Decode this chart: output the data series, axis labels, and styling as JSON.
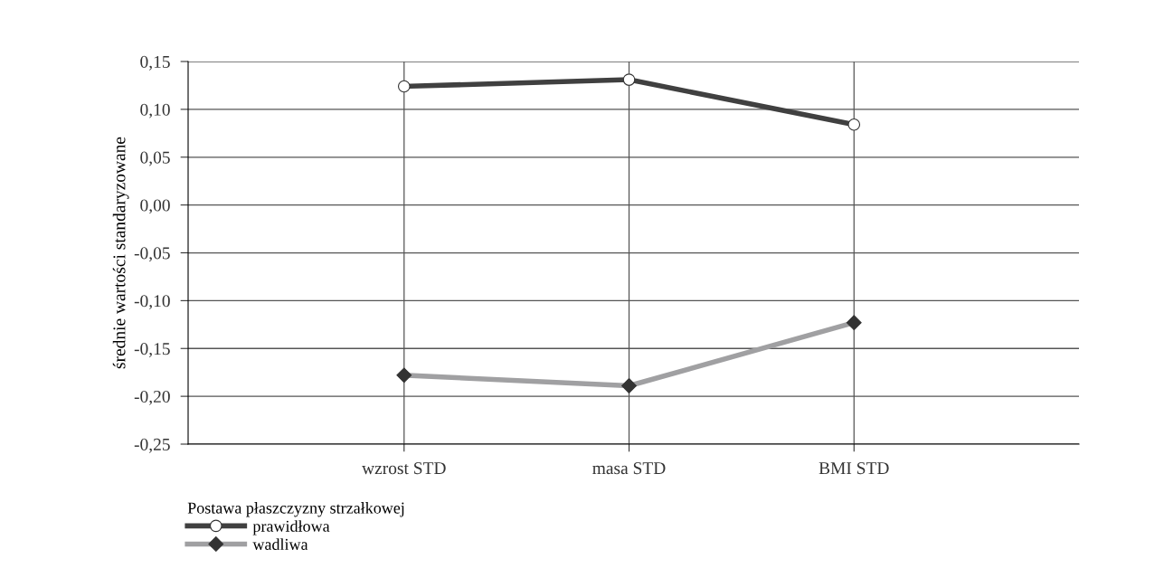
{
  "chart_data": {
    "type": "line",
    "ylabel": "średnie wartości standaryzowane",
    "legend_title": "Postawa płaszczyzny strzałkowej",
    "categories": [
      "wzrost STD",
      "masa STD",
      "BMI STD"
    ],
    "series": [
      {
        "name": "prawidłowa",
        "color": "#404040",
        "marker": "circle",
        "values": [
          0.124,
          0.131,
          0.084
        ]
      },
      {
        "name": "wadliwa",
        "color": "#a0a0a2",
        "marker": "diamond",
        "values": [
          -0.178,
          -0.189,
          -0.123
        ]
      }
    ],
    "ylim": [
      -0.25,
      0.15
    ],
    "yticks": [
      {
        "value": -0.25,
        "label": "-0,25"
      },
      {
        "value": -0.2,
        "label": "-0,20"
      },
      {
        "value": -0.15,
        "label": "-0,15"
      },
      {
        "value": -0.1,
        "label": "-0,10"
      },
      {
        "value": -0.05,
        "label": "-0,05"
      },
      {
        "value": 0,
        "label": "0,00"
      },
      {
        "value": 0.05,
        "label": "0,05"
      },
      {
        "value": 0.1,
        "label": "0,10"
      },
      {
        "value": 0.15,
        "label": "0,15"
      }
    ],
    "grid": true,
    "legend": "bottom left",
    "line_style": "solid"
  }
}
